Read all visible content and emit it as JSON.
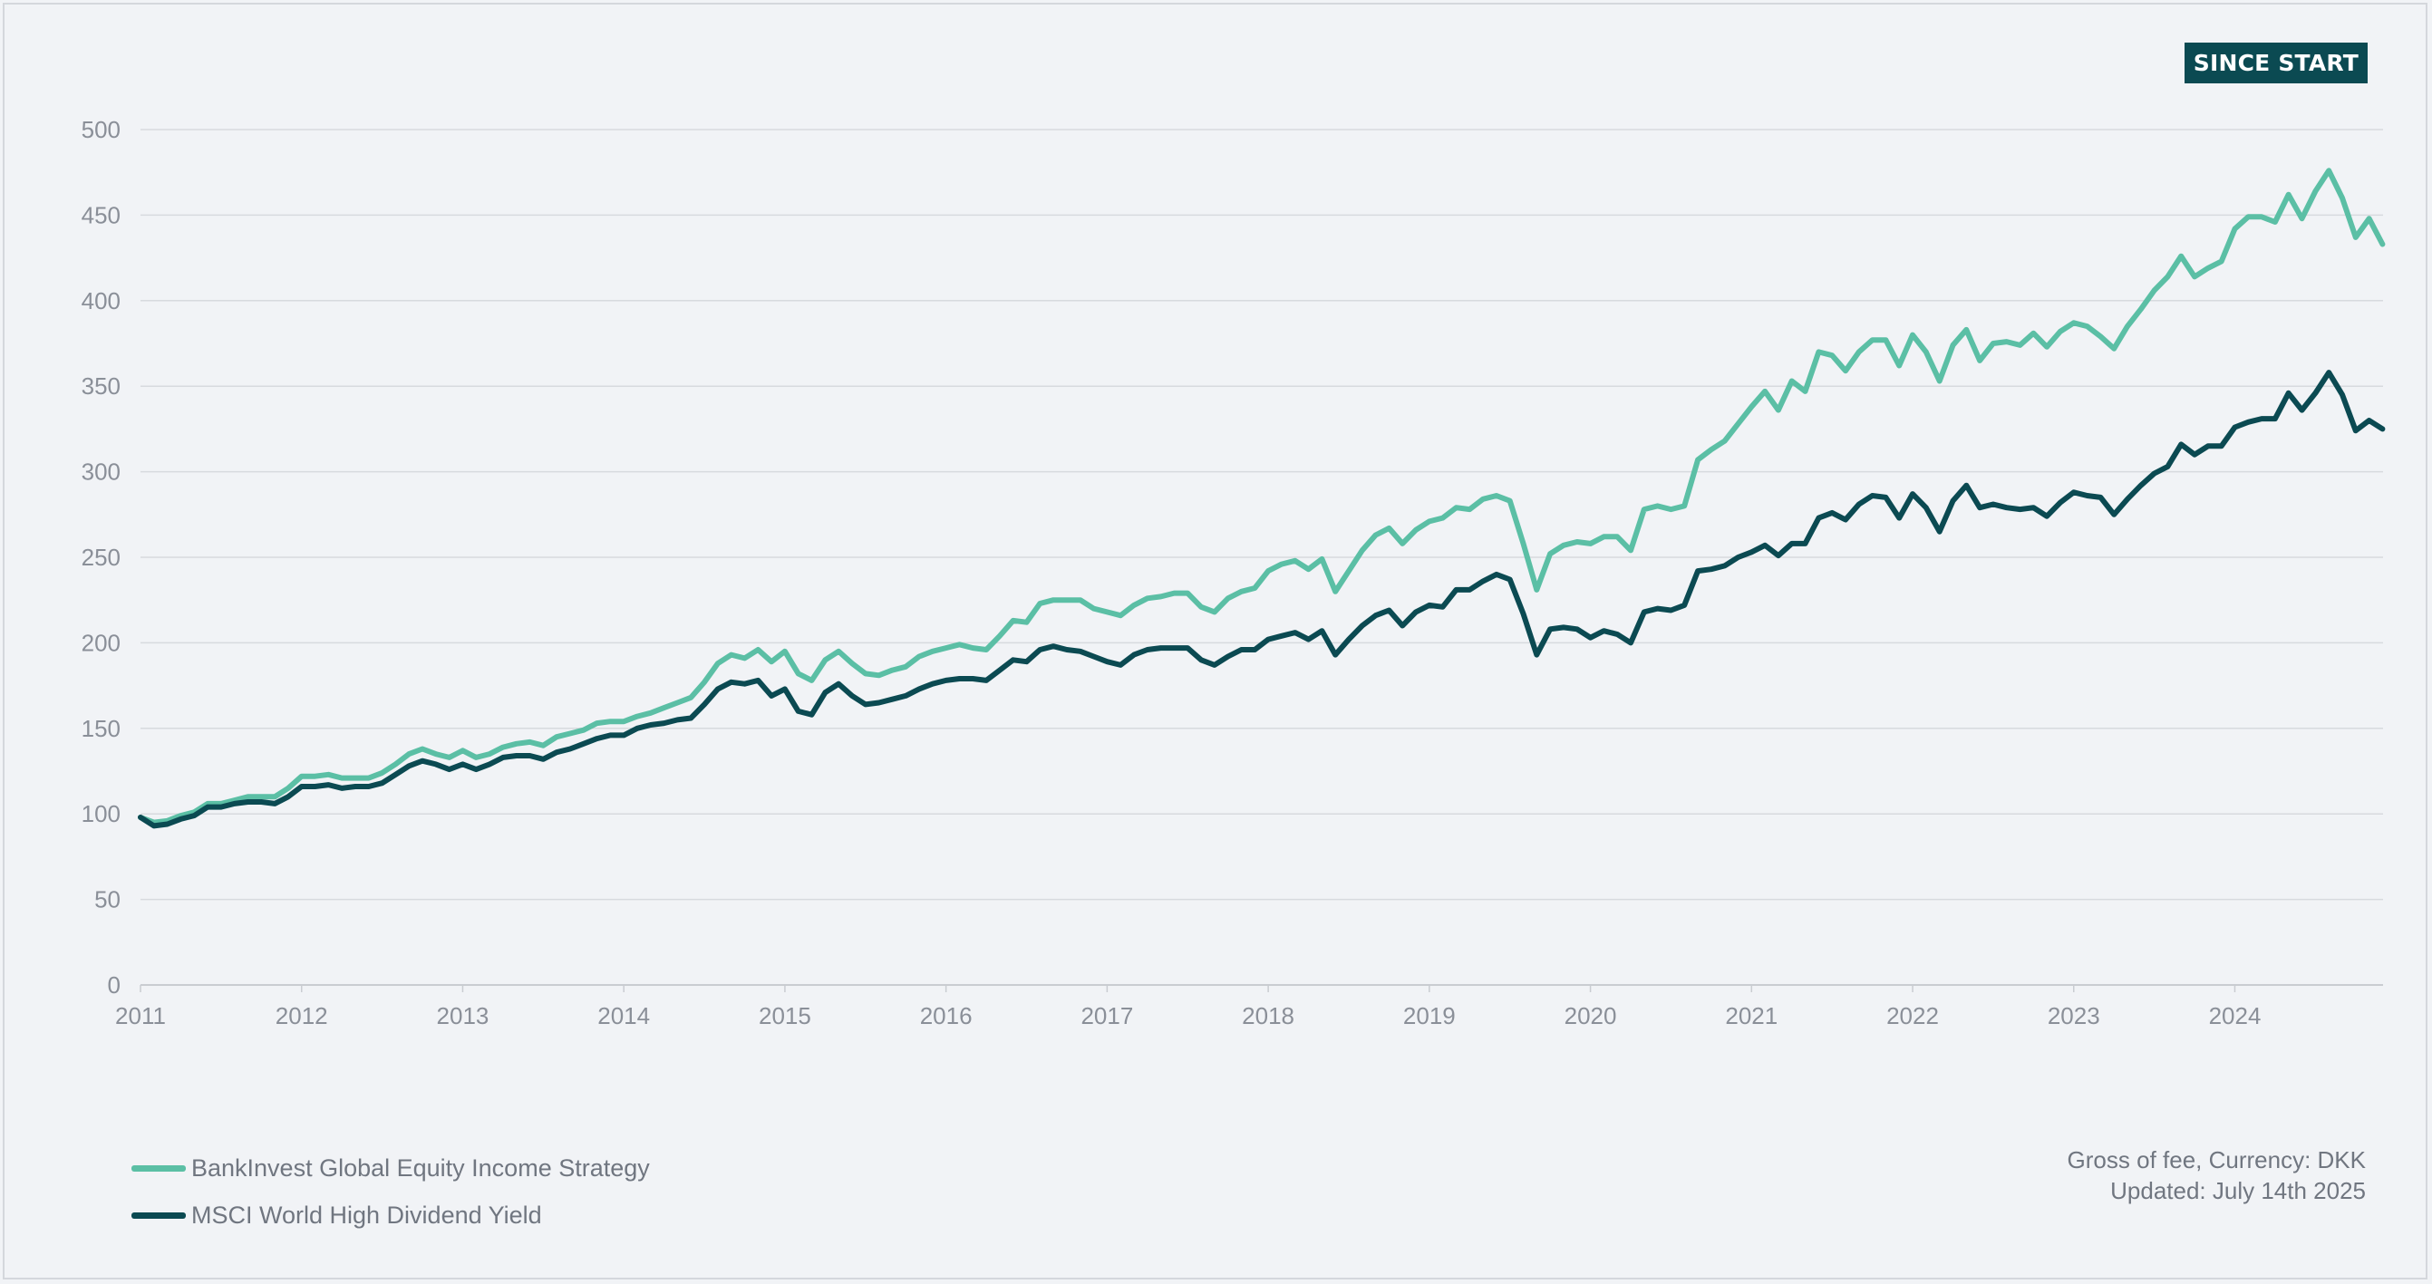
{
  "badge": "SINCE START",
  "legend": [
    {
      "label": "BankInvest Global Equity Income Strategy",
      "color": "#5bbfa5"
    },
    {
      "label": "MSCI World High Dividend Yield",
      "color": "#0b4a52"
    }
  ],
  "note": {
    "line1": "Gross of fee, Currency: DKK",
    "line2": "Updated: July 14th 2025"
  },
  "chart_data": {
    "type": "line",
    "title": "",
    "xlabel": "",
    "ylabel": "",
    "xlim": [
      2011,
      2024.92
    ],
    "ylim": [
      0,
      500
    ],
    "yticks": [
      0,
      50,
      100,
      150,
      200,
      250,
      300,
      350,
      400,
      450,
      500
    ],
    "xticks": [
      "2011",
      "2012",
      "2013",
      "2014",
      "2015",
      "2016",
      "2017",
      "2018",
      "2019",
      "2020",
      "2021",
      "2022",
      "2023",
      "2024"
    ],
    "grid": true,
    "legend_position": "bottom-left",
    "x_start": "2011-01",
    "x_step": "1 month",
    "series": [
      {
        "name": "BankInvest Global Equity Income Strategy",
        "color": "#5bbfa5",
        "values": [
          98,
          95,
          96,
          99,
          101,
          106,
          106,
          108,
          110,
          110,
          110,
          115,
          122,
          122,
          123,
          121,
          121,
          121,
          124,
          129,
          135,
          138,
          135,
          133,
          137,
          133,
          135,
          139,
          141,
          142,
          140,
          145,
          147,
          149,
          153,
          154,
          154,
          157,
          159,
          162,
          165,
          168,
          177,
          188,
          193,
          191,
          196,
          189,
          195,
          182,
          178,
          190,
          195,
          188,
          182,
          181,
          184,
          186,
          192,
          195,
          197,
          199,
          197,
          196,
          204,
          213,
          212,
          223,
          225,
          225,
          225,
          220,
          218,
          216,
          222,
          226,
          227,
          229,
          229,
          221,
          218,
          226,
          230,
          232,
          242,
          246,
          248,
          243,
          249,
          230,
          242,
          254,
          263,
          267,
          258,
          266,
          271,
          273,
          279,
          278,
          284,
          286,
          283,
          258,
          231,
          252,
          257,
          259,
          258,
          262,
          262,
          254,
          278,
          280,
          278,
          280,
          307,
          313,
          318,
          328,
          338,
          347,
          336,
          353,
          347,
          370,
          368,
          359,
          370,
          377,
          377,
          362,
          380,
          370,
          353,
          374,
          383,
          365,
          375,
          376,
          374,
          381,
          373,
          382,
          387,
          385,
          379,
          372,
          385,
          395,
          406,
          414,
          426,
          414,
          419,
          423,
          442,
          449,
          449,
          446,
          462,
          448,
          464,
          476,
          460,
          437,
          448,
          433
        ]
      },
      {
        "name": "MSCI World High Dividend Yield",
        "color": "#0b4a52",
        "values": [
          98,
          93,
          94,
          97,
          99,
          104,
          104,
          106,
          107,
          107,
          106,
          110,
          116,
          116,
          117,
          115,
          116,
          116,
          118,
          123,
          128,
          131,
          129,
          126,
          129,
          126,
          129,
          133,
          134,
          134,
          132,
          136,
          138,
          141,
          144,
          146,
          146,
          150,
          152,
          153,
          155,
          156,
          164,
          173,
          177,
          176,
          178,
          169,
          173,
          160,
          158,
          171,
          176,
          169,
          164,
          165,
          167,
          169,
          173,
          176,
          178,
          179,
          179,
          178,
          184,
          190,
          189,
          196,
          198,
          196,
          195,
          192,
          189,
          187,
          193,
          196,
          197,
          197,
          197,
          190,
          187,
          192,
          196,
          196,
          202,
          204,
          206,
          202,
          207,
          193,
          202,
          210,
          216,
          219,
          210,
          218,
          222,
          221,
          231,
          231,
          236,
          240,
          237,
          217,
          193,
          208,
          209,
          208,
          203,
          207,
          205,
          200,
          218,
          220,
          219,
          222,
          242,
          243,
          245,
          250,
          253,
          257,
          251,
          258,
          258,
          273,
          276,
          272,
          281,
          286,
          285,
          273,
          287,
          279,
          265,
          283,
          292,
          279,
          281,
          279,
          278,
          279,
          274,
          282,
          288,
          286,
          285,
          275,
          284,
          292,
          299,
          303,
          316,
          310,
          315,
          315,
          326,
          329,
          331,
          331,
          346,
          336,
          346,
          358,
          345,
          324,
          330,
          325
        ]
      }
    ]
  }
}
